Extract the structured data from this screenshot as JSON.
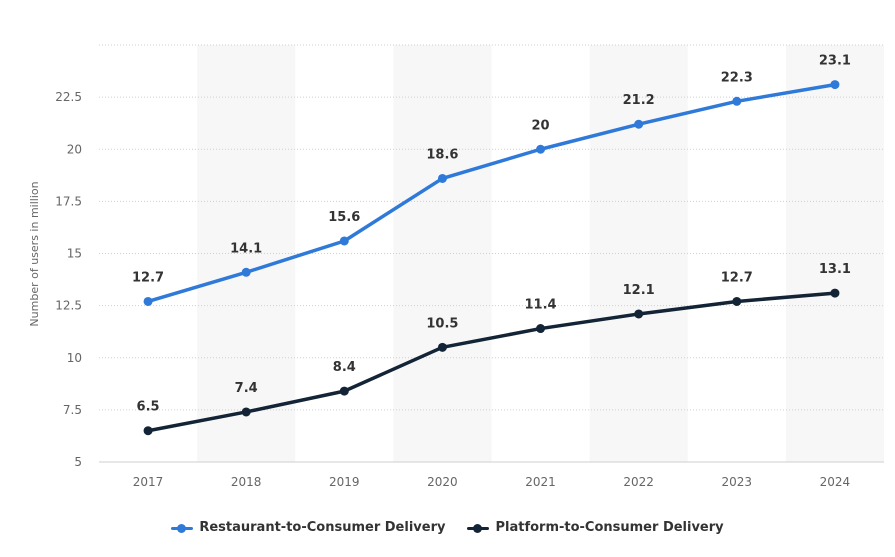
{
  "chart_data": {
    "type": "line",
    "categories": [
      "2017",
      "2018",
      "2019",
      "2020",
      "2021",
      "2022",
      "2023",
      "2024"
    ],
    "series": [
      {
        "name": "Restaurant-to-Consumer Delivery",
        "color": "#2f79d9",
        "values": [
          12.7,
          14.1,
          15.6,
          18.6,
          20,
          21.2,
          22.3,
          23.1
        ],
        "labels": [
          "12.7",
          "14.1",
          "15.6",
          "18.6",
          "20",
          "21.2",
          "22.3",
          "23.1"
        ]
      },
      {
        "name": "Platform-to-Consumer Delivery",
        "color": "#132437",
        "values": [
          6.5,
          7.4,
          8.4,
          10.5,
          11.4,
          12.1,
          12.7,
          13.1
        ],
        "labels": [
          "6.5",
          "7.4",
          "8.4",
          "10.5",
          "11.4",
          "12.1",
          "12.7",
          "13.1"
        ]
      }
    ],
    "ylabel": "Number of users in million",
    "ylim": [
      5,
      25
    ],
    "yticks": [
      5,
      7.5,
      10,
      12.5,
      15,
      17.5,
      20,
      22.5
    ],
    "ytick_labels": [
      "5",
      "7.5",
      "10",
      "12.5",
      "15",
      "17.5",
      "20",
      "22.5"
    ],
    "grid": true,
    "legend_position": "bottom-center"
  }
}
